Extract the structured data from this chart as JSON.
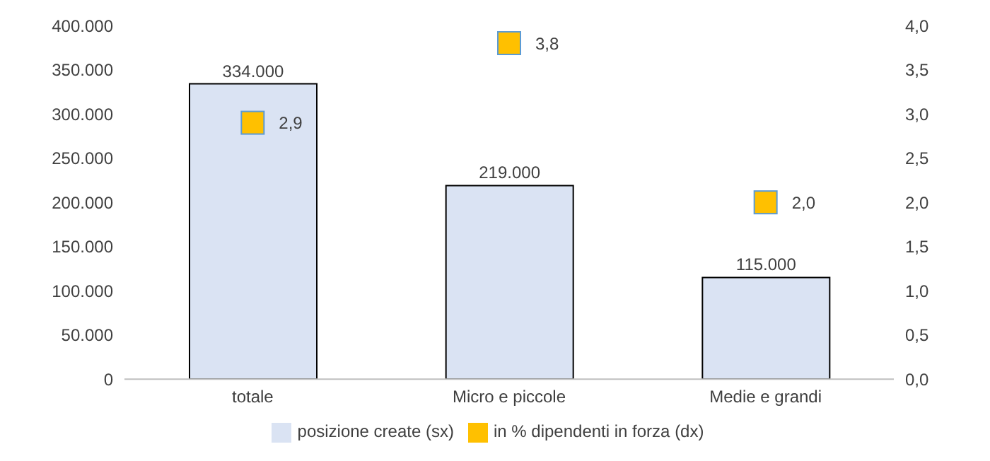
{
  "chart_data": {
    "type": "bar",
    "categories": [
      "totale",
      "Micro e piccole",
      "Medie e grandi"
    ],
    "series": [
      {
        "name": "posizione create (sx)",
        "color": "#dae3f3",
        "values": [
          334000,
          219000,
          115000
        ],
        "value_labels": [
          "334.000",
          "219.000",
          "115.000"
        ]
      },
      {
        "name": "in % dipendenti in forza (dx)",
        "type": "scatter",
        "axis": "y2",
        "color": "#ffc000",
        "values": [
          2.9,
          3.8,
          2.0
        ],
        "value_labels": [
          "2,9",
          "3,8",
          "2,0"
        ]
      }
    ],
    "ylim": [
      0,
      400000
    ],
    "yticks": [
      0,
      {
        "value": 50000,
        "label": "50.000"
      },
      {
        "value": 100000,
        "label": "100.000"
      },
      {
        "value": 150000,
        "label": "150.000"
      },
      {
        "value": 200000,
        "label": "200.000"
      },
      {
        "value": 250000,
        "label": "250.000"
      },
      {
        "value": 300000,
        "label": "300.000"
      },
      {
        "value": 350000,
        "label": "350.000"
      },
      {
        "value": 400000,
        "label": "400.000"
      }
    ],
    "y2lim": [
      0,
      4
    ],
    "y2ticks": [
      {
        "value": 0,
        "label": "0,0"
      },
      {
        "value": 0.5,
        "label": "0,5"
      },
      {
        "value": 1,
        "label": "1,0"
      },
      {
        "value": 1.5,
        "label": "1,5"
      },
      {
        "value": 2,
        "label": "2,0"
      },
      {
        "value": 2.5,
        "label": "2,5"
      },
      {
        "value": 3,
        "label": "3,0"
      },
      {
        "value": 3.5,
        "label": "3,5"
      },
      {
        "value": 4,
        "label": "4,0"
      }
    ],
    "grid": false,
    "legend": "bottom",
    "marker": "square"
  }
}
